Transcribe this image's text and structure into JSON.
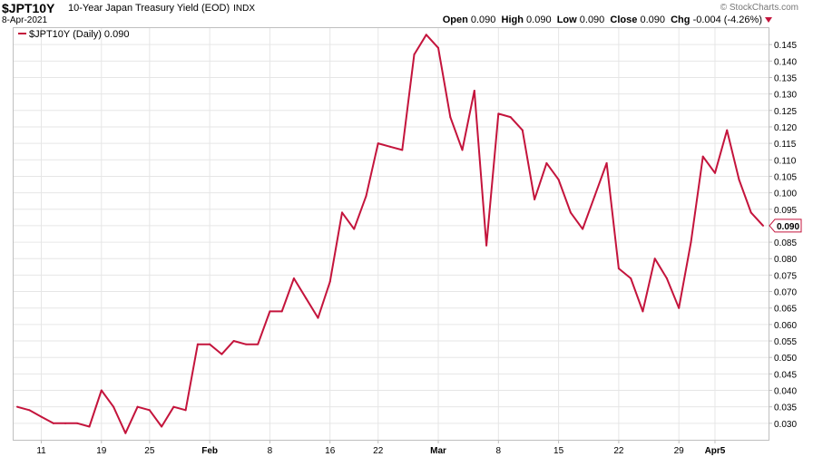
{
  "header": {
    "symbol": "$JPT10Y",
    "description": "10-Year Japan Treasury Yield (EOD)",
    "exchange": "INDX",
    "date": "8-Apr-2021",
    "brand": "© StockCharts.com",
    "open_label": "Open",
    "open": "0.090",
    "high_label": "High",
    "high": "0.090",
    "low_label": "Low",
    "low": "0.090",
    "close_label": "Close",
    "close": "0.090",
    "chg_label": "Chg",
    "chg": "-0.004 (-4.26%)"
  },
  "legend": {
    "text": "$JPT10Y (Daily) 0.090"
  },
  "colors": {
    "line": "#c4143c",
    "grid": "#e6e6e6",
    "axis": "#bfbfbf"
  },
  "chart_data": {
    "type": "line",
    "title": "10-Year Japan Treasury Yield (EOD)",
    "ylim": [
      0.025,
      0.15
    ],
    "y_ticks": [
      "0.030",
      "0.035",
      "0.040",
      "0.045",
      "0.050",
      "0.055",
      "0.060",
      "0.065",
      "0.070",
      "0.075",
      "0.080",
      "0.085",
      "0.090",
      "0.095",
      "0.100",
      "0.105",
      "0.110",
      "0.115",
      "0.120",
      "0.125",
      "0.130",
      "0.135",
      "0.140",
      "0.145"
    ],
    "x_ticks": [
      "11",
      "19",
      "25",
      "Feb",
      "8",
      "16",
      "22",
      "Mar",
      "8",
      "15",
      "22",
      "29",
      "Apr5"
    ],
    "x_tick_index": [
      2,
      7,
      11,
      16,
      21,
      26,
      30,
      35,
      40,
      45,
      50,
      55,
      58
    ],
    "last_value_label": "0.090",
    "series": [
      {
        "name": "$JPT10Y (Daily)",
        "values": [
          0.035,
          0.034,
          0.032,
          0.03,
          0.03,
          0.03,
          0.029,
          0.04,
          0.035,
          0.027,
          0.035,
          0.034,
          0.029,
          0.035,
          0.034,
          0.054,
          0.054,
          0.051,
          0.055,
          0.054,
          0.054,
          0.064,
          0.064,
          0.074,
          0.068,
          0.062,
          0.073,
          0.094,
          0.089,
          0.099,
          0.115,
          0.114,
          0.113,
          0.142,
          0.148,
          0.144,
          0.123,
          0.113,
          0.131,
          0.084,
          0.124,
          0.123,
          0.119,
          0.098,
          0.109,
          0.104,
          0.094,
          0.089,
          0.099,
          0.109,
          0.077,
          0.074,
          0.064,
          0.08,
          0.074,
          0.065,
          0.085,
          0.111,
          0.106,
          0.119,
          0.104,
          0.094,
          0.09
        ]
      }
    ]
  }
}
